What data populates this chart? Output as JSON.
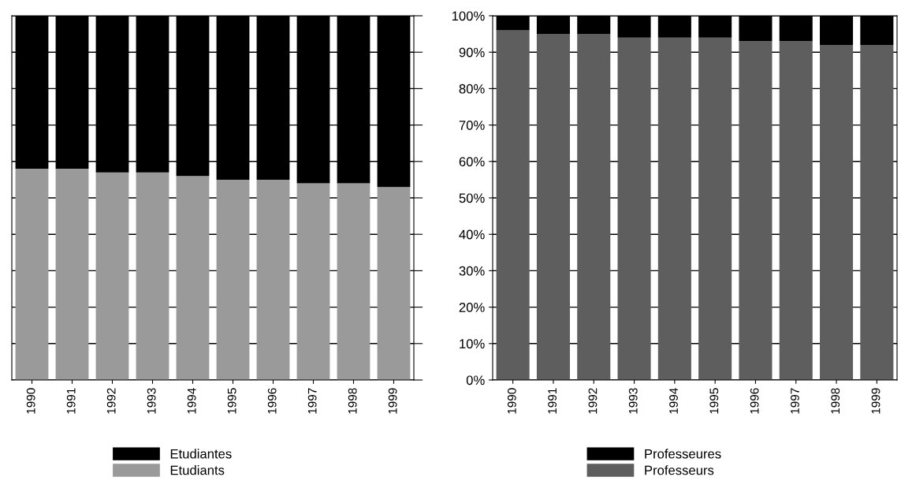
{
  "chart_data": [
    {
      "type": "bar",
      "stacked": true,
      "categories": [
        "1990",
        "1991",
        "1992",
        "1993",
        "1994",
        "1995",
        "1996",
        "1997",
        "1998",
        "1999"
      ],
      "series": [
        {
          "name": "Etudiants",
          "color": "#9a9a9a",
          "values": [
            58,
            58,
            57,
            57,
            56,
            55,
            55,
            54,
            54,
            53
          ]
        },
        {
          "name": "Etudiantes",
          "color": "#000000",
          "values": [
            42,
            42,
            43,
            43,
            44,
            45,
            45,
            46,
            46,
            47
          ]
        }
      ],
      "ylim": [
        0,
        100
      ],
      "yticks": [
        0,
        10,
        20,
        30,
        40,
        50,
        60,
        70,
        80,
        90,
        100
      ],
      "tick_labels": "x",
      "grid": "y",
      "legend": "bottom"
    },
    {
      "type": "bar",
      "stacked": true,
      "categories": [
        "1990",
        "1991",
        "1992",
        "1993",
        "1994",
        "1995",
        "1996",
        "1997",
        "1998",
        "1999"
      ],
      "series": [
        {
          "name": "Professeurs",
          "color": "#5e5e5e",
          "values": [
            96,
            95,
            95,
            94,
            94,
            94,
            93,
            93,
            92,
            92
          ]
        },
        {
          "name": "Professeures",
          "color": "#000000",
          "values": [
            4,
            5,
            5,
            6,
            6,
            6,
            7,
            7,
            8,
            8
          ]
        }
      ],
      "ylim": [
        0,
        100
      ],
      "yticks": [
        {
          "value": 0,
          "label": "0%"
        },
        {
          "value": 10,
          "label": "10%"
        },
        {
          "value": 20,
          "label": "20%"
        },
        {
          "value": 30,
          "label": "30%"
        },
        {
          "value": 40,
          "label": "40%"
        },
        {
          "value": 50,
          "label": "50%"
        },
        {
          "value": 60,
          "label": "60%"
        },
        {
          "value": 70,
          "label": "70%"
        },
        {
          "value": 80,
          "label": "80%"
        },
        {
          "value": 90,
          "label": "90%"
        },
        {
          "value": 100,
          "label": "100%"
        }
      ],
      "grid": "y",
      "legend": "bottom"
    }
  ]
}
